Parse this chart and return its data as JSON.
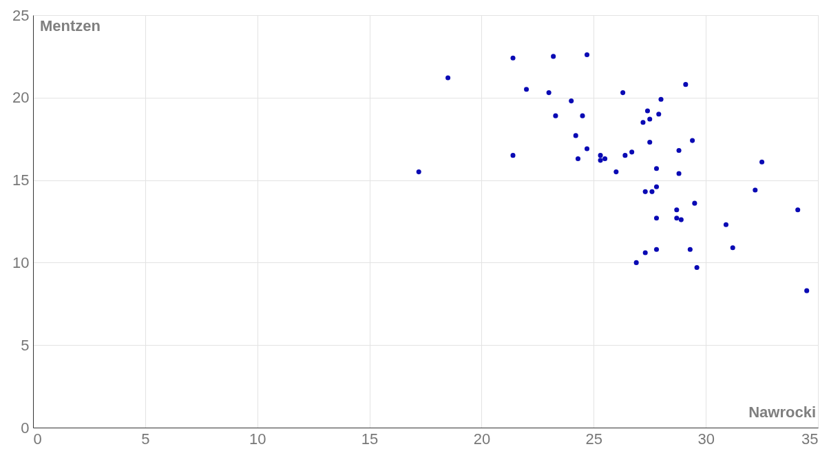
{
  "chart_data": {
    "type": "scatter",
    "xlabel": "Nawrocki",
    "ylabel": "Mentzen",
    "xlim": [
      0,
      35
    ],
    "ylim": [
      0,
      25
    ],
    "xticks": [
      0,
      5,
      10,
      15,
      20,
      25,
      30,
      35
    ],
    "yticks": [
      0,
      5,
      10,
      15,
      20,
      25
    ],
    "grid": true,
    "marker": "circle",
    "series": [
      {
        "color": "#0a0ab4",
        "x": [
          17.2,
          18.5,
          21.4,
          21.4,
          22.0,
          23.0,
          23.2,
          23.3,
          24.0,
          24.2,
          24.3,
          24.5,
          24.7,
          24.7,
          25.3,
          25.3,
          25.5,
          26.0,
          26.3,
          26.4,
          26.7,
          26.9,
          27.2,
          27.3,
          27.3,
          27.4,
          27.5,
          27.5,
          27.6,
          27.8,
          27.8,
          27.8,
          27.8,
          27.9,
          28.0,
          28.7,
          28.7,
          28.8,
          28.8,
          28.9,
          29.1,
          29.3,
          29.4,
          29.5,
          29.6,
          30.9,
          31.2,
          32.2,
          32.5,
          34.1,
          34.5
        ],
        "values": [
          15.5,
          21.2,
          22.4,
          16.5,
          20.5,
          20.3,
          22.5,
          18.9,
          19.8,
          17.7,
          16.3,
          18.9,
          22.6,
          16.9,
          16.5,
          16.2,
          16.3,
          15.5,
          20.3,
          16.5,
          16.7,
          10.0,
          18.5,
          14.3,
          10.6,
          19.2,
          18.7,
          17.3,
          14.3,
          15.7,
          14.6,
          12.7,
          10.8,
          19.0,
          19.9,
          13.2,
          12.7,
          16.8,
          15.4,
          12.6,
          20.8,
          10.8,
          17.4,
          13.6,
          9.7,
          12.3,
          10.9,
          14.4,
          16.1,
          13.2,
          8.3
        ]
      }
    ]
  }
}
